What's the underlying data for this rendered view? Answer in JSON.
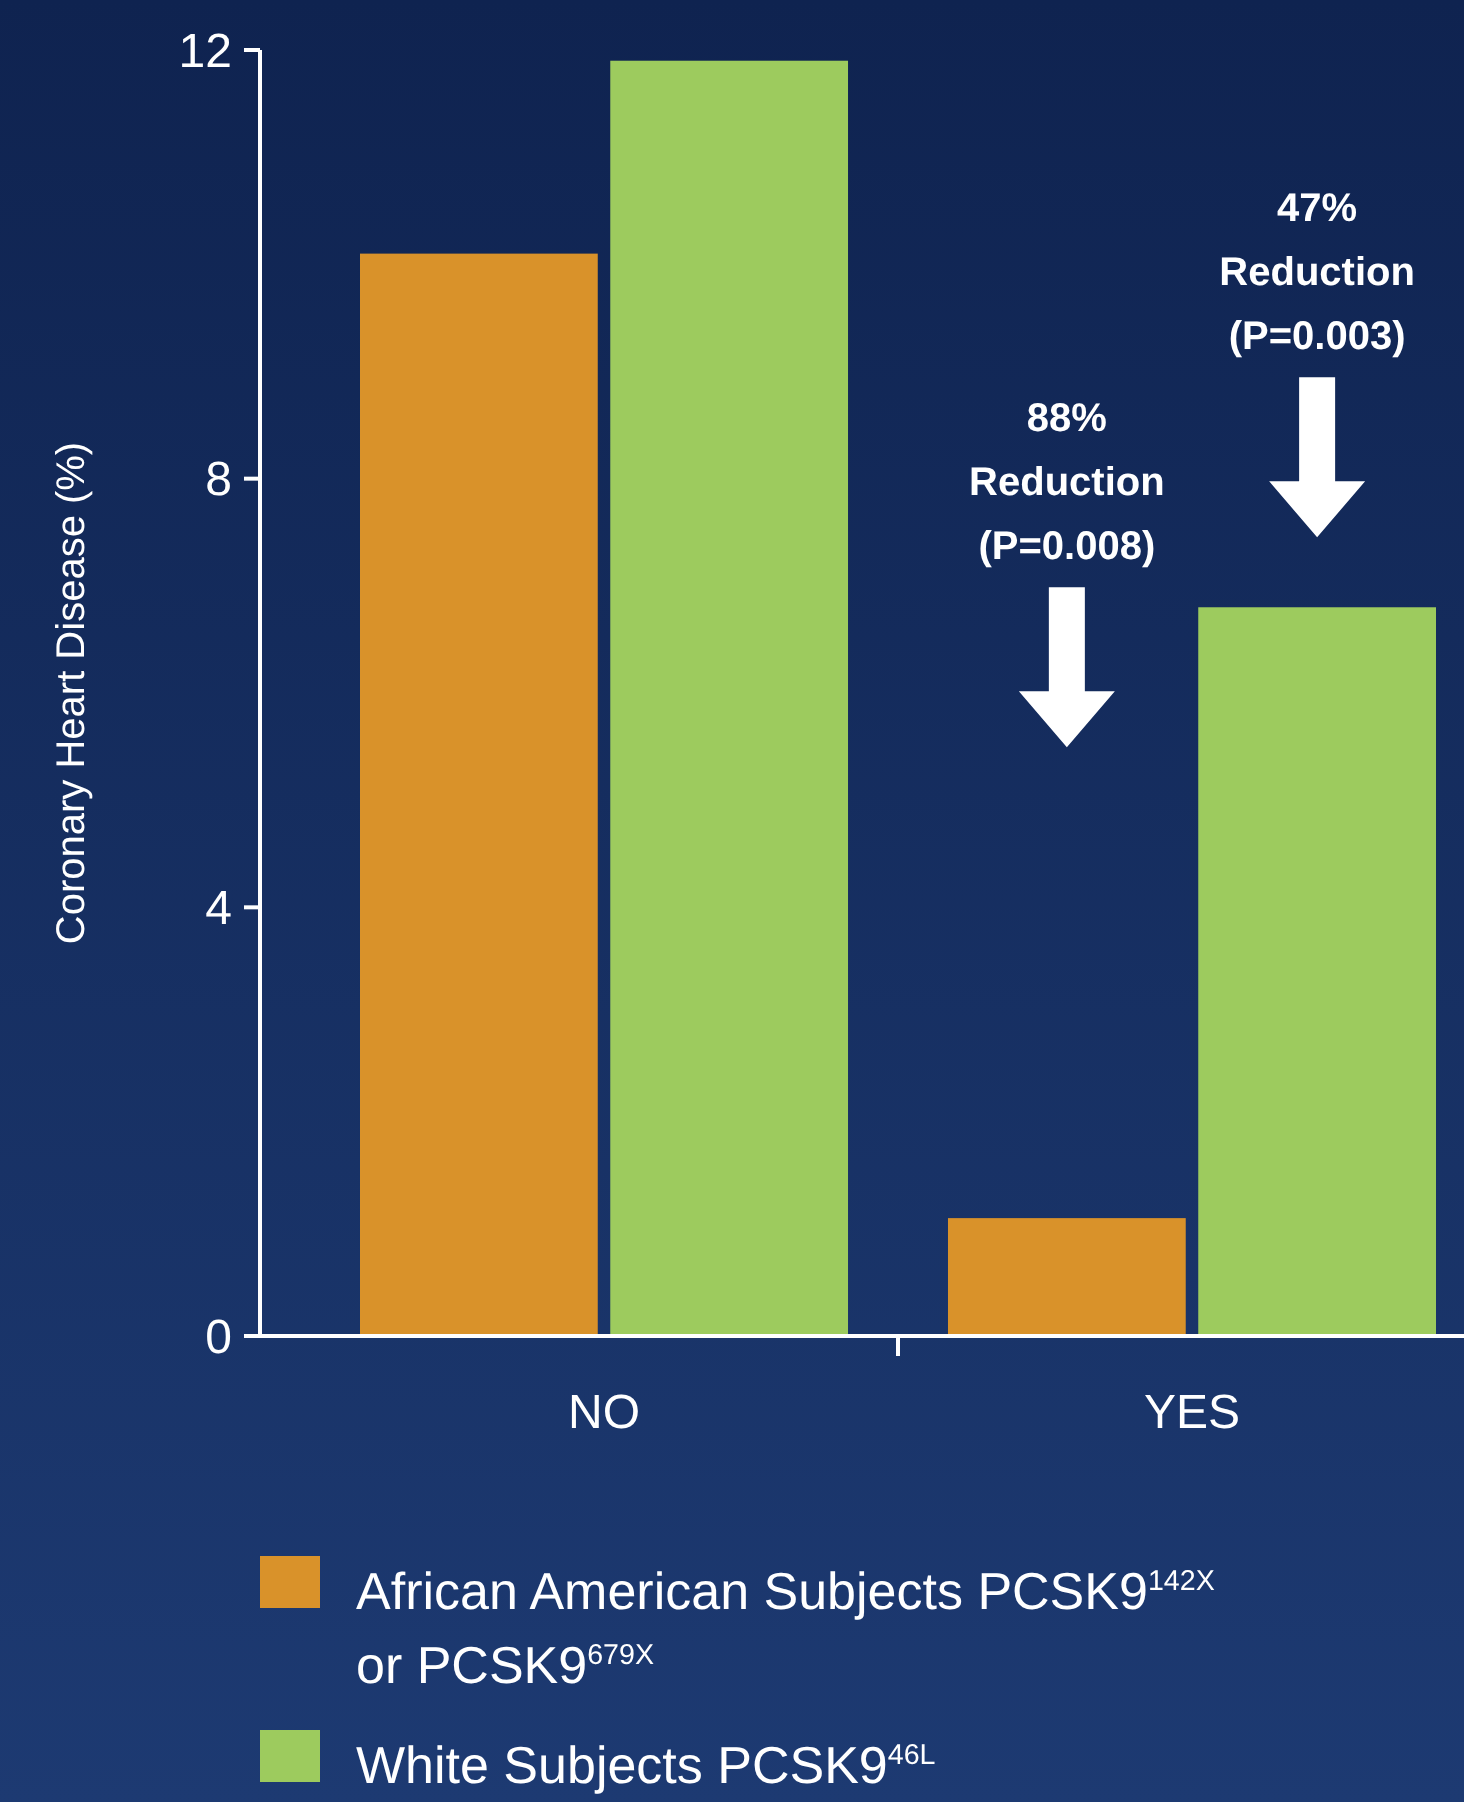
{
  "chart_data": {
    "type": "bar",
    "ylabel": "Coronary Heart Disease (%)",
    "categories": [
      "NO",
      "YES"
    ],
    "series": [
      {
        "name": "African American Subjects PCSK9$^{142X}$ or PCSK9$^{679X}$",
        "color": "#d9922a",
        "values": [
          10.1,
          1.1
        ]
      },
      {
        "name": "White Subjects PCSK9$^{46L}$",
        "color": "#9dcb5e",
        "values": [
          11.9,
          6.8
        ]
      }
    ],
    "ylim": [
      0,
      12
    ],
    "yticks": [
      0,
      4,
      8,
      12
    ],
    "grid": false,
    "legend": "bottom",
    "annotations": [
      "88%\nReduction\n(P=0.008)",
      "47%\nReduction\n(P=0.003)"
    ]
  }
}
